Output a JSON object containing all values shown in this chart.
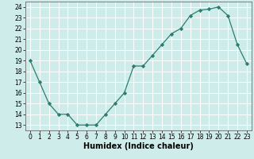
{
  "x": [
    0,
    1,
    2,
    3,
    4,
    5,
    6,
    7,
    8,
    9,
    10,
    11,
    12,
    13,
    14,
    15,
    16,
    17,
    18,
    19,
    20,
    21,
    22,
    23
  ],
  "y": [
    19,
    17,
    15,
    14,
    14,
    13,
    13,
    13,
    14,
    15,
    16,
    18.5,
    18.5,
    19.5,
    20.5,
    21.5,
    22,
    23.2,
    23.7,
    23.8,
    24,
    23.2,
    20.5,
    18.7
  ],
  "xlabel": "Humidex (Indice chaleur)",
  "ylim": [
    12.5,
    24.5
  ],
  "xlim": [
    -0.5,
    23.5
  ],
  "yticks": [
    13,
    14,
    15,
    16,
    17,
    18,
    19,
    20,
    21,
    22,
    23,
    24
  ],
  "xticks": [
    0,
    1,
    2,
    3,
    4,
    5,
    6,
    7,
    8,
    9,
    10,
    11,
    12,
    13,
    14,
    15,
    16,
    17,
    18,
    19,
    20,
    21,
    22,
    23
  ],
  "line_color": "#2d7d6e",
  "marker": "D",
  "marker_size": 2.2,
  "bg_color": "#ceecea",
  "grid_color": "#ffffff",
  "xlabel_fontsize": 7,
  "tick_fontsize": 5.5,
  "line_width": 0.9
}
